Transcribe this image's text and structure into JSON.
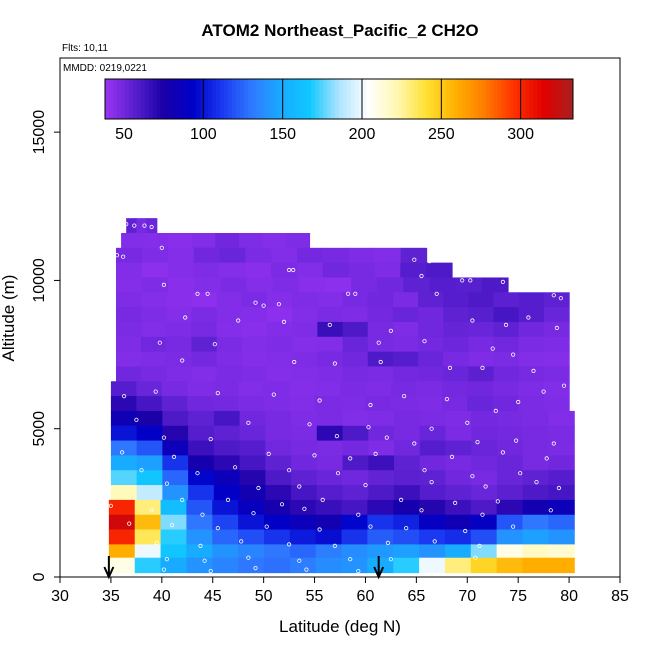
{
  "chart_data": {
    "type": "heatmap",
    "title": "ATOM2 Northeast_Pacific_2 CH2O",
    "flights_label": "Flts: 10,11",
    "mmdd_label": "MMDD: 0219,0221",
    "xlabel": "Latitude (deg N)",
    "ylabel": "Altitude (m)",
    "xlim": [
      30,
      85
    ],
    "ylim": [
      0,
      17500
    ],
    "x_ticks": [
      30,
      35,
      40,
      45,
      50,
      55,
      60,
      65,
      70,
      75,
      80,
      85
    ],
    "y_ticks": [
      0,
      5000,
      10000,
      15000
    ],
    "colorbar": {
      "range": [
        38,
        333
      ],
      "ticks": [
        50,
        100,
        150,
        200,
        250,
        300
      ],
      "colors": [
        "#9a35f5",
        "#5a20d0",
        "#1a00a8",
        "#0000c8",
        "#1a38f0",
        "#2f78ff",
        "#18aaff",
        "#10c8ff",
        "#aee4ff",
        "#ffffff",
        "#fff8b0",
        "#ffe030",
        "#ffb000",
        "#ff7a00",
        "#ff3000",
        "#e00000",
        "#a82020"
      ]
    },
    "arrows_at_latitude": [
      34.8,
      61.3
    ],
    "altitude_bins": [
      {
        "alt": 11850,
        "lat": [
          36.5,
          39.5
        ],
        "values": [
          55,
          48,
          52
        ]
      },
      {
        "alt": 11350,
        "lat": [
          36.0,
          54.5
        ],
        "values": [
          45,
          44,
          43,
          45,
          50,
          46,
          44,
          46
        ]
      },
      {
        "alt": 10850,
        "lat": [
          35.5,
          66.0
        ],
        "values": [
          48,
          46,
          44,
          50,
          52,
          47,
          45,
          49,
          48,
          46,
          45,
          55
        ]
      },
      {
        "alt": 10350,
        "lat": [
          35.5,
          68.5
        ],
        "values": [
          45,
          42,
          44,
          46,
          44,
          43,
          47,
          45,
          50,
          48,
          46,
          58,
          60
        ]
      },
      {
        "alt": 9850,
        "lat": [
          35.5,
          74.0
        ],
        "values": [
          44,
          46,
          43,
          45,
          47,
          44,
          46,
          43,
          42,
          48,
          50,
          55,
          58,
          57,
          60
        ]
      },
      {
        "alt": 9350,
        "lat": [
          35.5,
          80.0
        ],
        "values": [
          46,
          44,
          43,
          42,
          45,
          47,
          44,
          46,
          45,
          48,
          50,
          47,
          55,
          58,
          60,
          56,
          58,
          55
        ]
      },
      {
        "alt": 8850,
        "lat": [
          35.5,
          80.0
        ],
        "values": [
          48,
          46,
          44,
          47,
          45,
          44,
          42,
          45,
          47,
          46,
          49,
          52,
          50,
          55,
          57,
          62,
          58,
          52
        ]
      },
      {
        "alt": 8350,
        "lat": [
          35.5,
          80.0
        ],
        "values": [
          47,
          45,
          46,
          48,
          44,
          43,
          45,
          46,
          66,
          60,
          48,
          46,
          50,
          53,
          52,
          55,
          50,
          48
        ]
      },
      {
        "alt": 7850,
        "lat": [
          35.5,
          80.0
        ],
        "values": [
          46,
          50,
          48,
          55,
          47,
          45,
          46,
          44,
          45,
          52,
          48,
          47,
          49,
          51,
          48,
          50,
          47,
          46
        ]
      },
      {
        "alt": 7350,
        "lat": [
          35.5,
          80.0
        ],
        "values": [
          45,
          46,
          47,
          49,
          46,
          44,
          45,
          46,
          48,
          50,
          60,
          58,
          52,
          48,
          46,
          47,
          45,
          44
        ]
      },
      {
        "alt": 6850,
        "lat": [
          35.5,
          80.0
        ],
        "values": [
          50,
          48,
          46,
          45,
          47,
          46,
          44,
          45,
          46,
          48,
          47,
          49,
          50,
          52,
          56,
          50,
          48,
          47
        ]
      },
      {
        "alt": 6350,
        "lat": [
          35.0,
          80.0
        ],
        "values": [
          58,
          52,
          48,
          46,
          47,
          45,
          46,
          44,
          45,
          47,
          46,
          48,
          47,
          49,
          50,
          48,
          46,
          45
        ]
      },
      {
        "alt": 5850,
        "lat": [
          35.0,
          80.0
        ],
        "values": [
          70,
          62,
          55,
          50,
          49,
          47,
          46,
          45,
          47,
          46,
          48,
          47,
          46,
          48,
          52,
          50,
          47,
          46
        ]
      },
      {
        "alt": 5350,
        "lat": [
          35.0,
          80.5
        ],
        "values": [
          82,
          75,
          60,
          55,
          62,
          50,
          48,
          46,
          47,
          45,
          46,
          48,
          47,
          46,
          49,
          48,
          47,
          45
        ]
      },
      {
        "alt": 4850,
        "lat": [
          35.0,
          80.5
        ],
        "values": [
          100,
          92,
          72,
          58,
          55,
          52,
          48,
          47,
          70,
          60,
          50,
          48,
          52,
          47,
          50,
          49,
          48,
          47
        ]
      },
      {
        "alt": 4350,
        "lat": [
          35.0,
          80.5
        ],
        "values": [
          130,
          120,
          85,
          65,
          60,
          58,
          50,
          48,
          47,
          49,
          46,
          50,
          58,
          55,
          52,
          50,
          48,
          47
        ]
      },
      {
        "alt": 3850,
        "lat": [
          35.0,
          80.5
        ],
        "values": [
          150,
          145,
          110,
          78,
          70,
          62,
          55,
          50,
          48,
          60,
          65,
          55,
          50,
          48,
          50,
          52,
          48,
          50
        ]
      },
      {
        "alt": 3350,
        "lat": [
          35.0,
          80.5
        ],
        "values": [
          175,
          165,
          125,
          95,
          85,
          72,
          60,
          55,
          52,
          50,
          54,
          56,
          55,
          50,
          48,
          52,
          55,
          58
        ]
      },
      {
        "alt": 2850,
        "lat": [
          35.0,
          80.5
        ],
        "values": [
          220,
          190,
          140,
          110,
          92,
          80,
          70,
          62,
          58,
          55,
          60,
          65,
          58,
          55,
          52,
          56,
          60,
          62
        ]
      },
      {
        "alt": 2350,
        "lat": [
          34.8,
          80.5
        ],
        "values": [
          300,
          230,
          160,
          120,
          100,
          88,
          78,
          70,
          66,
          62,
          70,
          78,
          72,
          65,
          60,
          70,
          80,
          85
        ]
      },
      {
        "alt": 1850,
        "lat": [
          34.8,
          80.5
        ],
        "values": [
          320,
          255,
          180,
          130,
          115,
          100,
          92,
          85,
          80,
          95,
          110,
          105,
          90,
          82,
          90,
          120,
          130,
          125
        ]
      },
      {
        "alt": 1350,
        "lat": [
          34.8,
          80.5
        ],
        "values": [
          300,
          235,
          170,
          140,
          125,
          118,
          110,
          102,
          98,
          110,
          122,
          118,
          112,
          108,
          118,
          140,
          145,
          140
        ]
      },
      {
        "alt": 850,
        "lat": [
          34.8,
          80.5
        ],
        "values": [
          260,
          200,
          165,
          150,
          140,
          135,
          130,
          125,
          132,
          138,
          142,
          145,
          140,
          150,
          180,
          210,
          218,
          215
        ]
      },
      {
        "alt": 400,
        "lat": [
          34.8,
          80.5
        ],
        "values": [
          210,
          170,
          150,
          140,
          135,
          130,
          128,
          132,
          138,
          140,
          150,
          170,
          200,
          230,
          245,
          255,
          260,
          260
        ]
      }
    ],
    "observation_points": [
      [
        36.5,
        11900
      ],
      [
        37.3,
        11850
      ],
      [
        38.3,
        11850
      ],
      [
        39.0,
        11800
      ],
      [
        35.6,
        10850
      ],
      [
        36.2,
        10800
      ],
      [
        40.0,
        11100
      ],
      [
        52.5,
        10350
      ],
      [
        52.9,
        10350
      ],
      [
        64.8,
        10700
      ],
      [
        66.3,
        10650
      ],
      [
        65.5,
        10150
      ],
      [
        69.5,
        10000
      ],
      [
        70.3,
        10000
      ],
      [
        73.5,
        9950
      ],
      [
        75.5,
        9950
      ],
      [
        79.0,
        9950
      ],
      [
        40.2,
        9850
      ],
      [
        43.5,
        9550
      ],
      [
        44.5,
        9550
      ],
      [
        49.2,
        9250
      ],
      [
        50.0,
        9150
      ],
      [
        51.5,
        9200
      ],
      [
        58.3,
        9550
      ],
      [
        59.0,
        9550
      ],
      [
        67.0,
        9550
      ],
      [
        78.5,
        9500
      ],
      [
        79.2,
        9400
      ],
      [
        42.3,
        8750
      ],
      [
        47.5,
        8650
      ],
      [
        52.0,
        8600
      ],
      [
        56.5,
        8500
      ],
      [
        62.5,
        8300
      ],
      [
        70.5,
        8650
      ],
      [
        73.8,
        8500
      ],
      [
        76.0,
        8750
      ],
      [
        78.8,
        8400
      ],
      [
        39.8,
        7900
      ],
      [
        45.2,
        7850
      ],
      [
        61.3,
        7900
      ],
      [
        65.8,
        7950
      ],
      [
        72.5,
        7700
      ],
      [
        74.5,
        7500
      ],
      [
        42.0,
        7300
      ],
      [
        53.0,
        7250
      ],
      [
        57.0,
        7200
      ],
      [
        61.5,
        7250
      ],
      [
        68.3,
        7050
      ],
      [
        71.5,
        7050
      ],
      [
        76.5,
        6950
      ],
      [
        79.5,
        6450
      ],
      [
        36.3,
        6100
      ],
      [
        39.4,
        6250
      ],
      [
        45.5,
        6200
      ],
      [
        51.0,
        6150
      ],
      [
        55.5,
        5950
      ],
      [
        60.5,
        5800
      ],
      [
        63.8,
        6100
      ],
      [
        68.0,
        6000
      ],
      [
        72.8,
        5600
      ],
      [
        75.0,
        5900
      ],
      [
        77.5,
        6250
      ],
      [
        37.5,
        5300
      ],
      [
        48.5,
        5200
      ],
      [
        54.5,
        5150
      ],
      [
        60.3,
        5050
      ],
      [
        66.5,
        5000
      ],
      [
        70.0,
        5200
      ],
      [
        40.2,
        4700
      ],
      [
        44.8,
        4650
      ],
      [
        57.2,
        4750
      ],
      [
        62.1,
        4700
      ],
      [
        64.8,
        4500
      ],
      [
        71.0,
        4550
      ],
      [
        74.8,
        4600
      ],
      [
        78.5,
        4500
      ],
      [
        36.1,
        4200
      ],
      [
        41.2,
        4050
      ],
      [
        50.5,
        4150
      ],
      [
        55.0,
        4100
      ],
      [
        58.5,
        4000
      ],
      [
        61.0,
        4150
      ],
      [
        68.5,
        4050
      ],
      [
        73.5,
        4200
      ],
      [
        77.8,
        4000
      ],
      [
        38.0,
        3600
      ],
      [
        43.5,
        3500
      ],
      [
        47.2,
        3700
      ],
      [
        52.5,
        3600
      ],
      [
        57.3,
        3500
      ],
      [
        65.8,
        3600
      ],
      [
        70.5,
        3400
      ],
      [
        75.2,
        3500
      ],
      [
        40.5,
        3150
      ],
      [
        49.5,
        3000
      ],
      [
        53.5,
        3050
      ],
      [
        60.0,
        3100
      ],
      [
        66.5,
        3200
      ],
      [
        71.8,
        3050
      ],
      [
        76.8,
        3200
      ],
      [
        79.0,
        3000
      ],
      [
        42.0,
        2600
      ],
      [
        46.5,
        2600
      ],
      [
        51.8,
        2450
      ],
      [
        55.8,
        2600
      ],
      [
        63.5,
        2600
      ],
      [
        68.8,
        2500
      ],
      [
        73.0,
        2550
      ],
      [
        35.0,
        2400
      ],
      [
        39.0,
        2250
      ],
      [
        44.0,
        2100
      ],
      [
        49.0,
        2150
      ],
      [
        54.0,
        2300
      ],
      [
        59.3,
        2100
      ],
      [
        65.5,
        2250
      ],
      [
        71.5,
        2100
      ],
      [
        78.2,
        2250
      ],
      [
        36.8,
        1800
      ],
      [
        41.0,
        1750
      ],
      [
        45.5,
        1650
      ],
      [
        50.3,
        1700
      ],
      [
        55.5,
        1600
      ],
      [
        60.5,
        1700
      ],
      [
        64.0,
        1650
      ],
      [
        69.8,
        1550
      ],
      [
        74.5,
        1700
      ],
      [
        39.5,
        1150
      ],
      [
        43.8,
        1050
      ],
      [
        47.8,
        1200
      ],
      [
        52.5,
        1100
      ],
      [
        57.0,
        1050
      ],
      [
        62.2,
        1150
      ],
      [
        66.8,
        1200
      ],
      [
        71.2,
        1050
      ],
      [
        40.5,
        600
      ],
      [
        44.2,
        550
      ],
      [
        48.5,
        650
      ],
      [
        53.5,
        550
      ],
      [
        58.5,
        600
      ],
      [
        62.5,
        600
      ],
      [
        70.8,
        650
      ],
      [
        40.2,
        250
      ],
      [
        44.8,
        200
      ],
      [
        49.2,
        300
      ],
      [
        54.2,
        250
      ],
      [
        59.3,
        200
      ]
    ]
  }
}
